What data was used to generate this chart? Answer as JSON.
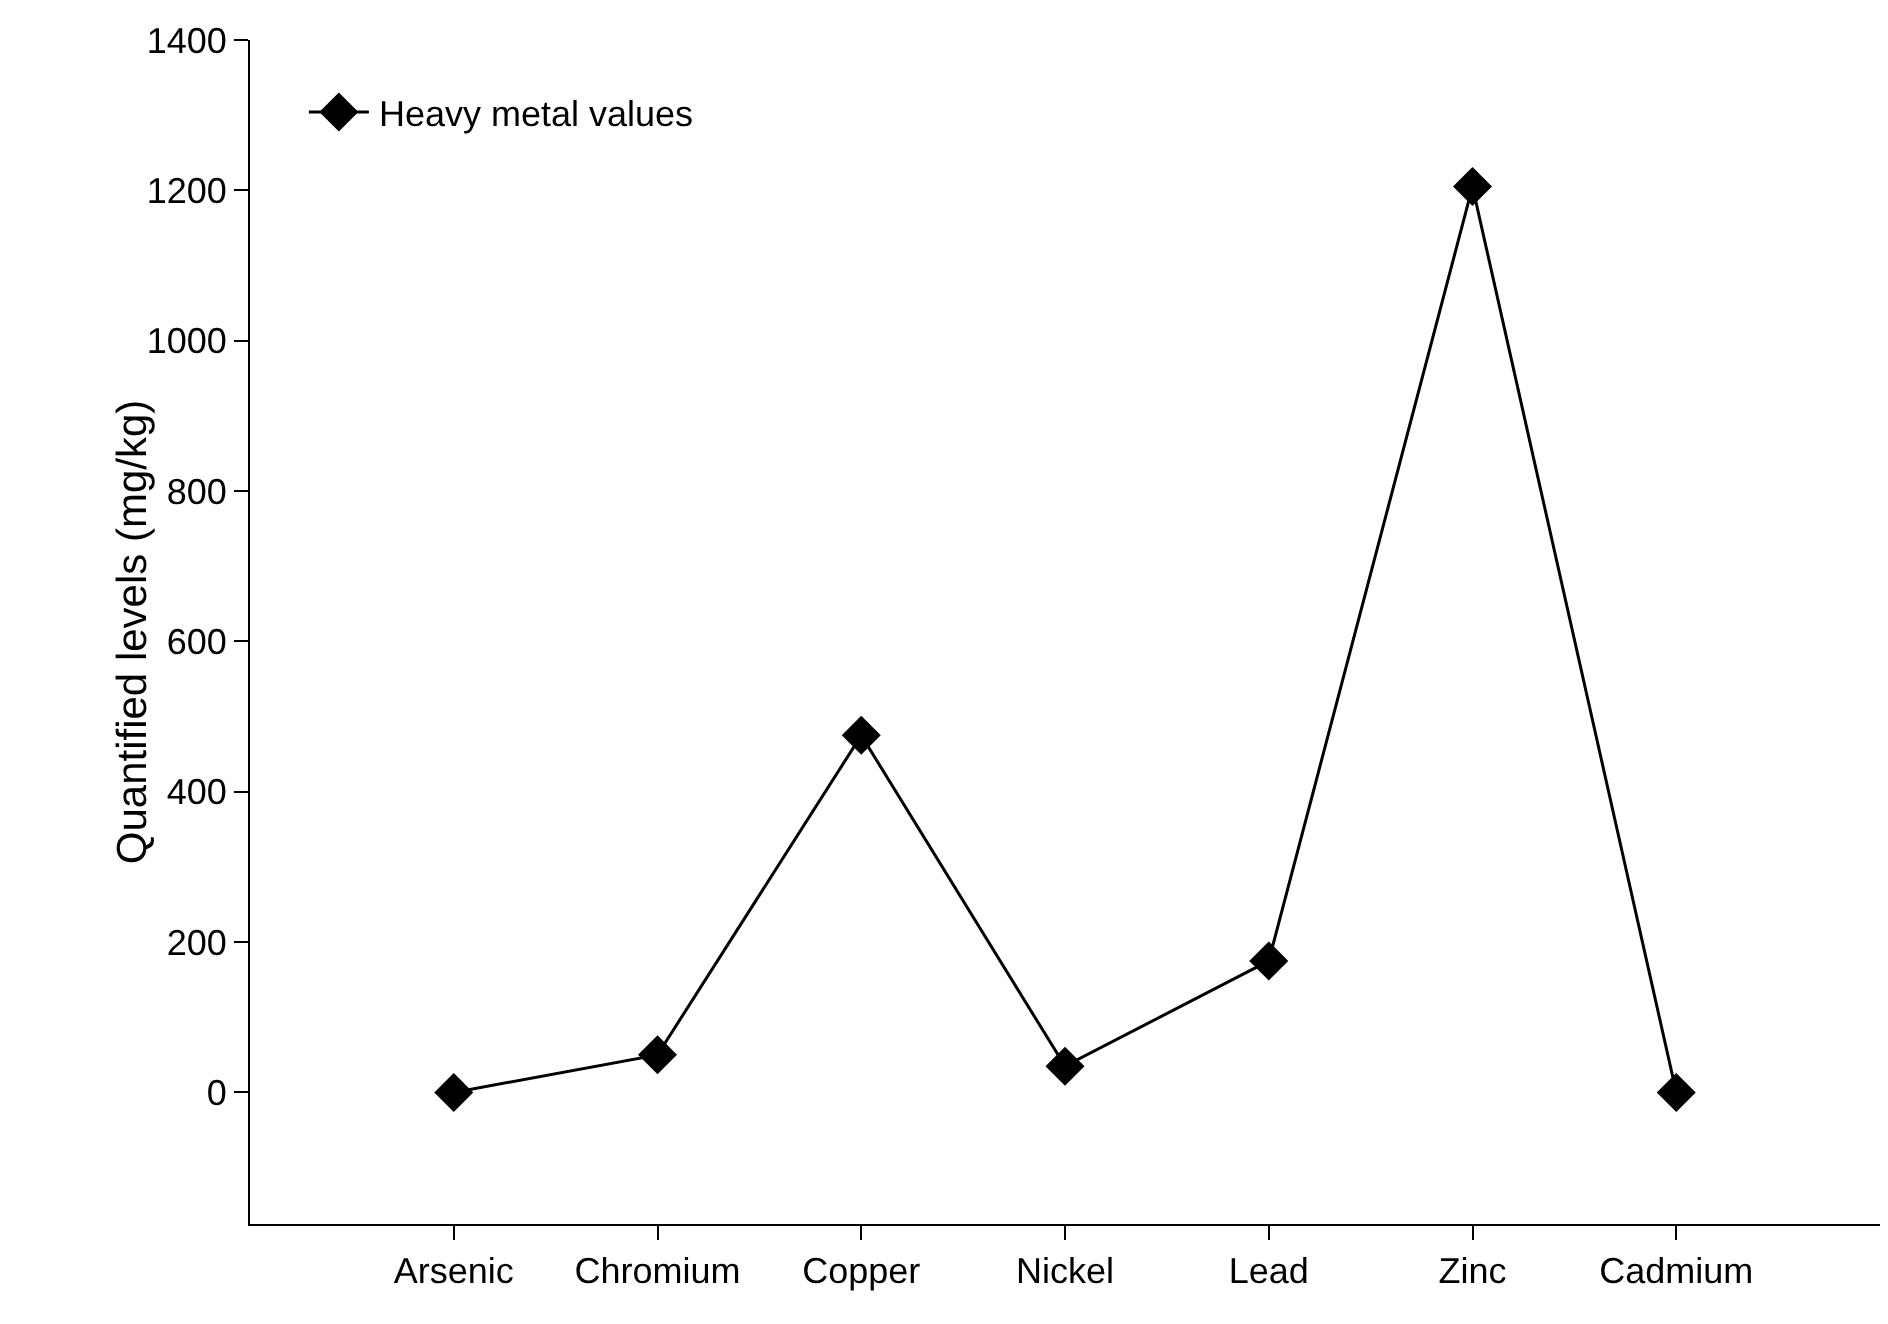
{
  "chart_data": {
    "type": "line",
    "ylabel": "Quantified levels (mg/kg)",
    "categories": [
      "Arsenic",
      "Chromium",
      "Copper",
      "Nickel",
      "Lead",
      "Zinc",
      "Cadmium"
    ],
    "series": [
      {
        "name": "Heavy metal values",
        "color": "#000000",
        "values": [
          0,
          50,
          475,
          35,
          175,
          1205,
          0
        ]
      }
    ],
    "ylim": [
      -175,
      1400
    ],
    "yticks": [
      0,
      200,
      400,
      600,
      800,
      1000,
      1200,
      1400
    ],
    "grid": false,
    "legend": "top left",
    "marker": "diamond",
    "line_style": "solid"
  }
}
